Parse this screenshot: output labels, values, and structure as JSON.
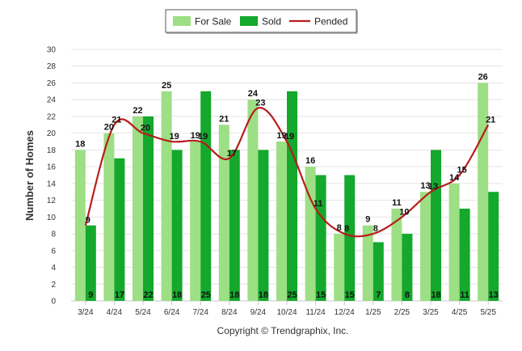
{
  "chart_data": {
    "type": "bar",
    "categories": [
      "3/24",
      "4/24",
      "5/24",
      "6/24",
      "7/24",
      "8/24",
      "9/24",
      "10/24",
      "11/24",
      "12/24",
      "1/25",
      "2/25",
      "3/25",
      "4/25",
      "5/25"
    ],
    "series": [
      {
        "name": "For Sale",
        "type": "bar",
        "color": "#9ddf84",
        "values": [
          18,
          20,
          22,
          25,
          19,
          21,
          24,
          19,
          16,
          8,
          9,
          11,
          13,
          14,
          26
        ]
      },
      {
        "name": "Sold",
        "type": "bar",
        "color": "#14a82c",
        "values": [
          9,
          17,
          22,
          18,
          25,
          18,
          18,
          25,
          15,
          15,
          7,
          8,
          18,
          11,
          13
        ]
      },
      {
        "name": "Pended",
        "type": "line",
        "color": "#b81c1c",
        "values": [
          9,
          21,
          20,
          19,
          19,
          17,
          23,
          19,
          11,
          8,
          8,
          10,
          13,
          15,
          21
        ]
      }
    ],
    "ylabel": "Number of Homes",
    "xlabel": "",
    "ylim": [
      0,
      30
    ],
    "yticks": [
      0,
      2,
      4,
      6,
      8,
      10,
      12,
      14,
      16,
      18,
      20,
      22,
      24,
      26,
      28,
      30
    ],
    "grid": true,
    "legend_position": "top-center"
  },
  "footer": {
    "copyright": "Copyright © Trendgraphix, Inc."
  }
}
